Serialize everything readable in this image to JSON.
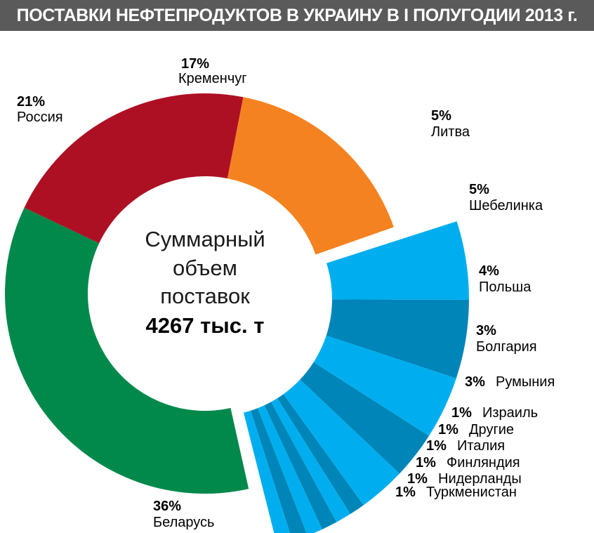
{
  "chart_data": {
    "type": "pie",
    "title": "ПОСТАВКИ НЕФТЕПРОДУКТОВ В УКРАИНУ В I ПОЛУГОДИИ 2013 г.",
    "center": {
      "lines": [
        "Суммарный",
        "объем",
        "поставок"
      ],
      "total": "4267 тыс. т"
    },
    "slices": [
      {
        "name": "Кременчуг",
        "value": 17,
        "pct_label": "17%",
        "color": "#f58220"
      },
      {
        "name": "Литва",
        "value": 5,
        "pct_label": "5%",
        "color": "#00aeef",
        "group": "imports"
      },
      {
        "name": "Шебелинка",
        "value": 5,
        "pct_label": "5%",
        "color": "#0085b8",
        "group": "imports"
      },
      {
        "name": "Польша",
        "value": 4,
        "pct_label": "4%",
        "color": "#00aeef",
        "group": "imports"
      },
      {
        "name": "Болгария",
        "value": 3,
        "pct_label": "3%",
        "color": "#0085b8",
        "group": "imports"
      },
      {
        "name": "Румыния",
        "value": 3,
        "pct_label": "3%",
        "color": "#00aeef",
        "group": "imports"
      },
      {
        "name": "Израиль",
        "value": 1,
        "pct_label": "1%",
        "color": "#0085b8",
        "group": "imports"
      },
      {
        "name": "Другие",
        "value": 1,
        "pct_label": "1%",
        "color": "#00aeef",
        "group": "imports"
      },
      {
        "name": "Италия",
        "value": 1,
        "pct_label": "1%",
        "color": "#0085b8",
        "group": "imports"
      },
      {
        "name": "Финляндия",
        "value": 1,
        "pct_label": "1%",
        "color": "#00aeef",
        "group": "imports"
      },
      {
        "name": "Нидерланды",
        "value": 1,
        "pct_label": "1%",
        "color": "#0085b8",
        "group": "imports"
      },
      {
        "name": "Туркменистан",
        "value": 1,
        "pct_label": "1%",
        "color": "#00aeef",
        "group": "imports"
      },
      {
        "name": "Беларусь",
        "value": 36,
        "pct_label": "36%",
        "color": "#00894a"
      },
      {
        "name": "Россия",
        "value": 21,
        "pct_label": "21%",
        "color": "#ad1023"
      }
    ]
  }
}
